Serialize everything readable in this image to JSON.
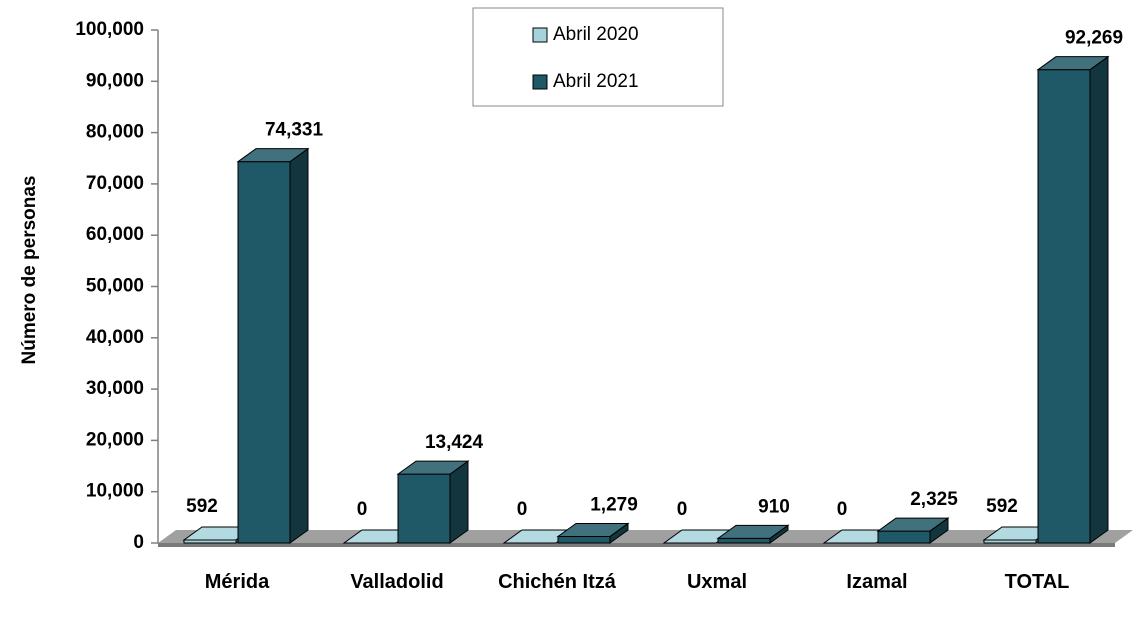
{
  "chart_data": {
    "type": "bar3d",
    "y_label": "Número de personas",
    "categories": [
      "Mérida",
      "Valladolid",
      "Chichén Itzá",
      "Uxmal",
      "Izamal",
      "TOTAL"
    ],
    "series": [
      {
        "name": "Abril 2020",
        "color": "#a6d3db",
        "values": [
          592,
          0,
          0,
          0,
          0,
          592
        ],
        "value_labels": [
          "592",
          "0",
          "0",
          "0",
          "0",
          "592"
        ]
      },
      {
        "name": "Abril 2021",
        "color": "#1f5866",
        "values": [
          74331,
          13424,
          1279,
          910,
          2325,
          92269
        ],
        "value_labels": [
          "74,331",
          "13,424",
          "1,279",
          "910",
          "2,325",
          "92,269"
        ]
      }
    ],
    "ylim": [
      0,
      100000
    ],
    "yticks": [
      0,
      {
        "value": 10000,
        "label": "10,000"
      },
      {
        "value": 20000,
        "label": "20,000"
      },
      {
        "value": 30000,
        "label": "30,000"
      },
      {
        "value": 40000,
        "label": "40,000"
      },
      {
        "value": 50000,
        "label": "50,000"
      },
      {
        "value": 60000,
        "label": "60,000"
      },
      {
        "value": 70000,
        "label": "70,000"
      },
      {
        "value": 80000,
        "label": "80,000"
      },
      {
        "value": 90000,
        "label": "90,000"
      },
      {
        "value": 100000,
        "label": "100,000"
      }
    ],
    "legend": "top"
  }
}
